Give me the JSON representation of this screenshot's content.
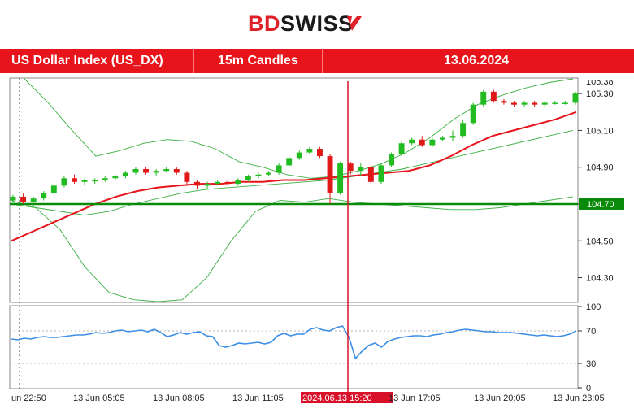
{
  "brand": {
    "part1": "BD",
    "part2": "SWISS"
  },
  "header": {
    "instrument": "US Dollar Index (US_DX)",
    "timeframe": "15m Candles",
    "date": "13.06.2024"
  },
  "colors": {
    "brand_red": "#e8141b",
    "bull": "#22bb22",
    "bear": "#e01818",
    "ema": "#e8141b",
    "bands": "#3cb043",
    "level": "#0a8a0a",
    "rsi": "#3d8ee6",
    "marker": "#d8102a"
  },
  "chart_data": [
    {
      "type": "line",
      "title": "",
      "ylim": [
        104.17,
        105.38
      ],
      "yticks": [
        104.3,
        104.5,
        104.7,
        104.9,
        105.1,
        105.3
      ],
      "ytick_labels": [
        "104.30",
        "104.50",
        "104.70",
        "104.90",
        "105.10",
        "105.30"
      ],
      "top_clipped_label": "105.38",
      "horizontal_level": {
        "value": 104.7,
        "label": "104.70"
      },
      "event_marker": {
        "label": "2024.06.13 15:20"
      },
      "x_labels": [
        "un 22:50",
        "13 Jun 05:05",
        "13 Jun 08:05",
        "13 Jun 11:05",
        "2024.06.13 15:20",
        "13 Jun 17:05",
        "13 Jun 20:05",
        "13 Jun 23:05"
      ],
      "candles": [
        [
          104.72,
          104.75,
          104.7,
          104.74
        ],
        [
          104.74,
          104.76,
          104.7,
          104.71
        ],
        [
          104.71,
          104.74,
          104.69,
          104.73
        ],
        [
          104.73,
          104.77,
          104.72,
          104.76
        ],
        [
          104.76,
          104.81,
          104.75,
          104.8
        ],
        [
          104.8,
          104.85,
          104.79,
          104.84
        ],
        [
          104.84,
          104.86,
          104.81,
          104.82
        ],
        [
          104.82,
          104.84,
          104.8,
          104.83
        ],
        [
          104.83,
          104.84,
          104.81,
          104.83
        ],
        [
          104.83,
          104.85,
          104.82,
          104.84
        ],
        [
          104.84,
          104.86,
          104.83,
          104.85
        ],
        [
          104.85,
          104.88,
          104.84,
          104.87
        ],
        [
          104.87,
          104.9,
          104.86,
          104.89
        ],
        [
          104.89,
          104.9,
          104.86,
          104.87
        ],
        [
          104.87,
          104.89,
          104.85,
          104.88
        ],
        [
          104.88,
          104.9,
          104.87,
          104.89
        ],
        [
          104.89,
          104.9,
          104.86,
          104.87
        ],
        [
          104.87,
          104.88,
          104.8,
          104.82
        ],
        [
          104.82,
          104.83,
          104.78,
          104.8
        ],
        [
          104.8,
          104.82,
          104.78,
          104.81
        ],
        [
          104.81,
          104.83,
          104.8,
          104.82
        ],
        [
          104.82,
          104.83,
          104.8,
          104.81
        ],
        [
          104.81,
          104.84,
          104.8,
          104.83
        ],
        [
          104.83,
          104.86,
          104.82,
          104.85
        ],
        [
          104.85,
          104.87,
          104.84,
          104.86
        ],
        [
          104.86,
          104.88,
          104.85,
          104.87
        ],
        [
          104.87,
          104.92,
          104.86,
          104.91
        ],
        [
          104.91,
          104.96,
          104.9,
          104.95
        ],
        [
          104.95,
          104.99,
          104.94,
          104.98
        ],
        [
          104.98,
          105.01,
          104.97,
          105.0
        ],
        [
          105.0,
          105.01,
          104.95,
          104.96
        ],
        [
          104.96,
          104.97,
          104.7,
          104.76
        ],
        [
          104.76,
          104.93,
          104.75,
          104.92
        ],
        [
          104.92,
          104.93,
          104.86,
          104.88
        ],
        [
          104.88,
          104.92,
          104.85,
          104.9
        ],
        [
          104.9,
          104.91,
          104.81,
          104.82
        ],
        [
          104.82,
          104.92,
          104.81,
          104.91
        ],
        [
          104.91,
          104.98,
          104.9,
          104.97
        ],
        [
          104.97,
          105.04,
          104.96,
          105.03
        ],
        [
          105.03,
          105.06,
          105.02,
          105.05
        ],
        [
          105.05,
          105.07,
          105.01,
          105.02
        ],
        [
          105.02,
          105.06,
          105.01,
          105.05
        ],
        [
          105.05,
          105.07,
          105.04,
          105.06
        ],
        [
          105.06,
          105.1,
          105.04,
          105.07
        ],
        [
          105.07,
          105.16,
          105.06,
          105.14
        ],
        [
          105.14,
          105.25,
          105.13,
          105.24
        ],
        [
          105.24,
          105.32,
          105.23,
          105.31
        ],
        [
          105.31,
          105.32,
          105.25,
          105.26
        ],
        [
          105.26,
          105.27,
          105.24,
          105.25
        ],
        [
          105.25,
          105.26,
          105.23,
          105.24
        ],
        [
          105.24,
          105.26,
          105.23,
          105.25
        ],
        [
          105.25,
          105.26,
          105.23,
          105.24
        ],
        [
          105.24,
          105.26,
          105.23,
          105.25
        ],
        [
          105.25,
          105.26,
          105.24,
          105.25
        ],
        [
          105.25,
          105.26,
          105.24,
          105.25
        ],
        [
          105.25,
          105.31,
          105.24,
          105.3
        ]
      ],
      "ema": [
        104.5,
        104.55,
        104.6,
        104.65,
        104.7,
        104.74,
        104.77,
        104.79,
        104.8,
        104.81,
        104.81,
        104.82,
        104.82,
        104.83,
        104.83,
        104.84,
        104.85,
        104.86,
        104.87,
        104.88,
        104.91,
        104.96,
        105.02,
        105.07,
        105.1,
        105.13,
        105.16,
        105.2
      ],
      "band_upper": [
        105.38,
        105.25,
        105.1,
        104.96,
        104.99,
        105.03,
        105.05,
        105.04,
        105.0,
        104.93,
        104.9,
        104.86,
        104.84,
        104.85,
        104.88,
        104.92,
        104.98,
        105.06,
        105.16,
        105.24,
        105.29,
        105.33,
        105.36,
        105.38
      ],
      "band_middle": [
        104.72,
        104.68,
        104.66,
        104.64,
        104.66,
        104.7,
        104.73,
        104.76,
        104.78,
        104.79,
        104.8,
        104.81,
        104.82,
        104.83,
        104.85,
        104.87,
        104.89,
        104.92,
        104.95,
        104.98,
        105.01,
        105.04,
        105.07,
        105.1
      ],
      "band_lower": [
        104.7,
        104.68,
        104.56,
        104.36,
        104.22,
        104.18,
        104.17,
        104.18,
        104.3,
        104.5,
        104.66,
        104.72,
        104.71,
        104.73,
        104.71,
        104.7,
        104.69,
        104.68,
        104.67,
        104.67,
        104.68,
        104.7,
        104.72,
        104.74
      ]
    },
    {
      "type": "line",
      "title": "",
      "ylim": [
        0,
        100
      ],
      "yticks": [
        0,
        30,
        70,
        100
      ],
      "ytick_labels": [
        "0",
        "30",
        "70",
        "100"
      ],
      "guide_levels": [
        30,
        70
      ],
      "rsi": [
        60,
        59,
        61,
        60,
        62,
        63,
        62,
        62,
        63,
        64,
        65,
        65,
        66,
        68,
        67,
        68,
        70,
        71,
        69,
        70,
        71,
        69,
        72,
        68,
        63,
        65,
        68,
        66,
        68,
        69,
        64,
        63,
        52,
        50,
        52,
        55,
        54,
        55,
        56,
        54,
        56,
        64,
        67,
        64,
        66,
        66,
        72,
        74,
        71,
        70,
        74,
        76,
        62,
        36,
        45,
        52,
        55,
        50,
        57,
        60,
        62,
        63,
        64,
        64,
        63,
        65,
        66,
        68,
        69,
        71,
        72,
        71,
        70,
        69,
        69,
        68,
        68,
        68,
        67,
        66,
        65,
        64,
        65,
        64,
        63,
        64,
        66,
        70
      ]
    }
  ]
}
